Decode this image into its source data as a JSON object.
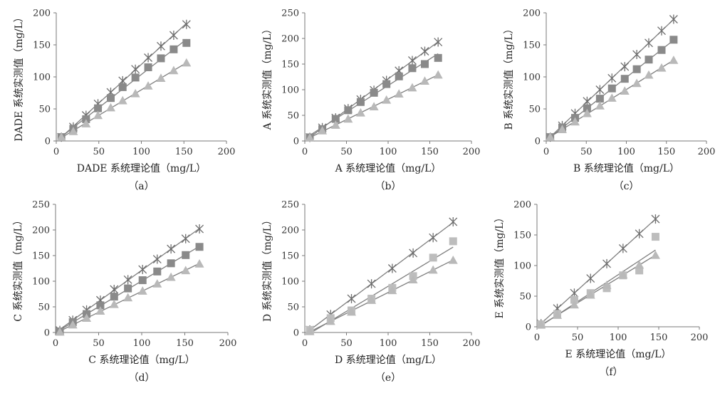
{
  "chart_data": [
    {
      "type": "scatter",
      "panel": "a",
      "caption": "（a）",
      "xlabel": "DADE 系统理论值（mg/L）",
      "ylabel": "DADE 系统实测值（mg/L）",
      "xlim": [
        0,
        200
      ],
      "ylim": [
        0,
        200
      ],
      "xticks": [
        0,
        50,
        100,
        150,
        200
      ],
      "yticks": [
        0,
        50,
        100,
        150,
        200
      ],
      "x": [
        6,
        20,
        35,
        49,
        64,
        78,
        93,
        108,
        123,
        138,
        153
      ],
      "series": [
        {
          "marker": "star",
          "values": [
            6,
            22,
            40,
            58,
            76,
            94,
            112,
            130,
            148,
            165,
            182
          ]
        },
        {
          "marker": "square",
          "values": [
            6,
            19,
            34,
            51,
            67,
            84,
            99,
            115,
            129,
            143,
            153
          ]
        },
        {
          "marker": "triangle",
          "values": [
            6,
            15,
            27,
            40,
            52,
            63,
            74,
            86,
            98,
            110,
            122
          ]
        }
      ]
    },
    {
      "type": "scatter",
      "panel": "b",
      "caption": "（b）",
      "xlabel": "A 系统理论值（mg/L）",
      "ylabel": "A 系统实测值（mg/L）",
      "xlim": [
        0,
        200
      ],
      "ylim": [
        0,
        250
      ],
      "xticks": [
        0,
        50,
        100,
        150,
        200
      ],
      "yticks": [
        0,
        50,
        100,
        150,
        200,
        250
      ],
      "x": [
        6,
        21,
        37,
        52,
        67,
        83,
        98,
        113,
        129,
        144,
        160
      ],
      "series": [
        {
          "marker": "star",
          "values": [
            7,
            26,
            45,
            63,
            81,
            99,
            118,
            137,
            157,
            175,
            193
          ]
        },
        {
          "marker": "square",
          "values": [
            7,
            23,
            43,
            60,
            76,
            94,
            111,
            126,
            142,
            150,
            162
          ]
        },
        {
          "marker": "triangle",
          "values": [
            6,
            20,
            31,
            43,
            55,
            67,
            80,
            92,
            104,
            117,
            129
          ]
        }
      ]
    },
    {
      "type": "scatter",
      "panel": "c",
      "caption": "（c）",
      "xlabel": "B 系统理论值（mg/L）",
      "ylabel": "B 系统实测值（mg/L）",
      "xlim": [
        0,
        200
      ],
      "ylim": [
        0,
        200
      ],
      "xticks": [
        0,
        50,
        100,
        150,
        200
      ],
      "yticks": [
        0,
        50,
        100,
        150,
        200
      ],
      "x": [
        5,
        20,
        36,
        51,
        67,
        82,
        98,
        113,
        128,
        144,
        159
      ],
      "series": [
        {
          "marker": "star",
          "values": [
            6,
            24,
            43,
            62,
            80,
            98,
            116,
            135,
            153,
            172,
            190
          ]
        },
        {
          "marker": "square",
          "values": [
            6,
            21,
            36,
            51,
            66,
            82,
            97,
            112,
            127,
            142,
            158
          ]
        },
        {
          "marker": "triangle",
          "values": [
            6,
            18,
            30,
            43,
            55,
            67,
            78,
            90,
            103,
            114,
            126
          ]
        }
      ]
    },
    {
      "type": "scatter",
      "panel": "d",
      "caption": "（d）",
      "xlabel": "C 系统理论值（mg/L）",
      "ylabel": "C 系统实测值（mg/L）",
      "xlim": [
        0,
        200
      ],
      "ylim": [
        0,
        250
      ],
      "xticks": [
        0,
        50,
        100,
        150,
        200
      ],
      "yticks": [
        0,
        50,
        100,
        150,
        200,
        250
      ],
      "x": [
        5,
        20,
        36,
        52,
        68,
        84,
        101,
        118,
        134,
        151,
        167
      ],
      "series": [
        {
          "marker": "star",
          "values": [
            4,
            24,
            44,
            63,
            84,
            103,
            123,
            143,
            163,
            183,
            202
          ]
        },
        {
          "marker": "square",
          "values": [
            2,
            20,
            36,
            53,
            70,
            86,
            102,
            119,
            135,
            151,
            167
          ]
        },
        {
          "marker": "triangle",
          "values": [
            1,
            15,
            28,
            42,
            55,
            68,
            81,
            95,
            108,
            121,
            134
          ]
        }
      ]
    },
    {
      "type": "scatter",
      "panel": "e",
      "caption": "（e）",
      "xlabel": "D 系统理论值（mg/L）",
      "ylabel": "D 系统实测值（mg/L）",
      "xlim": [
        0,
        200
      ],
      "ylim": [
        0,
        250
      ],
      "xticks": [
        0,
        50,
        100,
        150,
        200
      ],
      "yticks": [
        0,
        50,
        100,
        150,
        200,
        250
      ],
      "x": [
        6,
        31,
        56,
        80,
        105,
        130,
        154,
        178
      ],
      "series": [
        {
          "marker": "star",
          "values": [
            5,
            35,
            66,
            95,
            125,
            155,
            185,
            216
          ]
        },
        {
          "marker": "square",
          "values": [
            5,
            28,
            43,
            66,
            87,
            110,
            146,
            178
          ]
        },
        {
          "marker": "triangle",
          "values": [
            2,
            22,
            40,
            63,
            82,
            103,
            122,
            141
          ]
        }
      ]
    },
    {
      "type": "scatter",
      "panel": "f",
      "caption": "（f）",
      "xlabel": "E 系统理论值（mg/L）",
      "ylabel": "E 系统实测值（mg/L）",
      "xlim": [
        0,
        200
      ],
      "ylim": [
        0,
        200
      ],
      "xticks": [
        0,
        50,
        100,
        150,
        200
      ],
      "yticks": [
        0,
        50,
        100,
        150,
        200
      ],
      "x": [
        5,
        25,
        46,
        66,
        86,
        106,
        126,
        146
      ],
      "series": [
        {
          "marker": "star",
          "values": [
            5,
            30,
            55,
            79,
            103,
            128,
            152,
            176
          ]
        },
        {
          "marker": "square",
          "values": [
            4,
            21,
            44,
            55,
            63,
            84,
            92,
            147
          ]
        },
        {
          "marker": "triangle",
          "values": [
            3,
            19,
            36,
            52,
            68,
            85,
            101,
            117
          ]
        }
      ]
    }
  ],
  "colors": {
    "star": "#6e6e6e",
    "square_a_d": "#8a8a8a",
    "square_e_f": "#bdbdbd",
    "triangle": "#b9b9b9",
    "line": "#7f7f7f",
    "axis": "#7a7a7a"
  }
}
